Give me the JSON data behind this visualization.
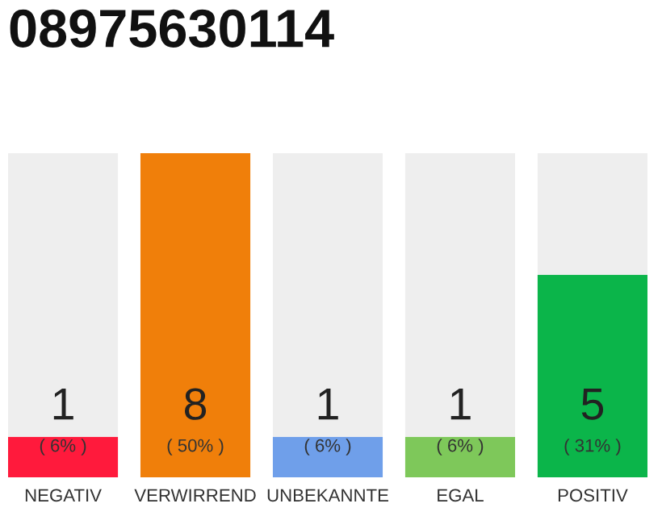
{
  "chart_data": {
    "type": "bar",
    "title": "08975630114",
    "categories": [
      "NEGATIV",
      "VERWIRREND",
      "UNBEKANNTE",
      "EGAL",
      "POSITIV"
    ],
    "stacked": true,
    "series": [
      {
        "colors": [
          "#ff1a3c",
          "#f07f0a",
          "#6f9fea",
          "#7ec85a",
          "#0bb54a"
        ],
        "values": [
          1,
          8,
          1,
          1,
          5
        ],
        "value_labels": [
          "1",
          "8",
          "1",
          "1",
          "5"
        ]
      },
      {
        "color": "#eeeeee",
        "values": [
          7,
          0,
          7,
          7,
          3
        ]
      }
    ],
    "grid": false,
    "legend": false,
    "annotations": [
      "( 6% )",
      "( 50% )",
      "( 6% )",
      "( 6% )",
      "( 31% )"
    ]
  }
}
